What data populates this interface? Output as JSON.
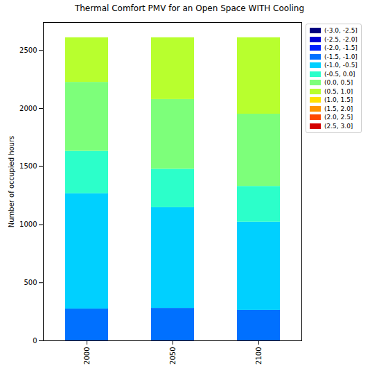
{
  "chart_data": {
    "type": "bar",
    "stacked": true,
    "title": "Thermal Comfort PMV for an Open Space WITH Cooling",
    "y_label": "Number of occupied hours",
    "categories": [
      "2000",
      "2050",
      "2100"
    ],
    "series": [
      {
        "name": "(-3.0, -2.5]",
        "color": "#000080",
        "values": [
          0,
          0,
          0
        ]
      },
      {
        "name": "(-2.5, -2.0]",
        "color": "#0000d4",
        "values": [
          0,
          0,
          0
        ]
      },
      {
        "name": "(-2.0, -1.5]",
        "color": "#0020ff",
        "values": [
          0,
          0,
          0
        ]
      },
      {
        "name": "(-1.5, -1.0]",
        "color": "#0070ff",
        "values": [
          274,
          280,
          263
        ]
      },
      {
        "name": "(-1.0, -0.5]",
        "color": "#00d0ff",
        "values": [
          993,
          867,
          759
        ]
      },
      {
        "name": "(-0.5, 0.0]",
        "color": "#2cffca",
        "values": [
          365,
          331,
          308
        ]
      },
      {
        "name": "(0.0, 0.5]",
        "color": "#7dff7a",
        "values": [
          594,
          600,
          622
        ]
      },
      {
        "name": "(0.5, 1.0]",
        "color": "#b8ff2e",
        "values": [
          384,
          532,
          658
        ]
      },
      {
        "name": "(1.0, 1.5]",
        "color": "#ffe200",
        "values": [
          0,
          0,
          0
        ]
      },
      {
        "name": "(1.5, 2.0]",
        "color": "#ff9400",
        "values": [
          0,
          0,
          0
        ]
      },
      {
        "name": "(2.0, 2.5]",
        "color": "#ff4800",
        "values": [
          0,
          0,
          0
        ]
      },
      {
        "name": "(2.5, 3.0]",
        "color": "#d40000",
        "values": [
          0,
          0,
          0
        ]
      }
    ],
    "ylim": [
      0,
      2740
    ],
    "yticks": [
      0,
      500,
      1000,
      1500,
      2000,
      2500
    ],
    "grid": false,
    "legend": "upper right"
  }
}
